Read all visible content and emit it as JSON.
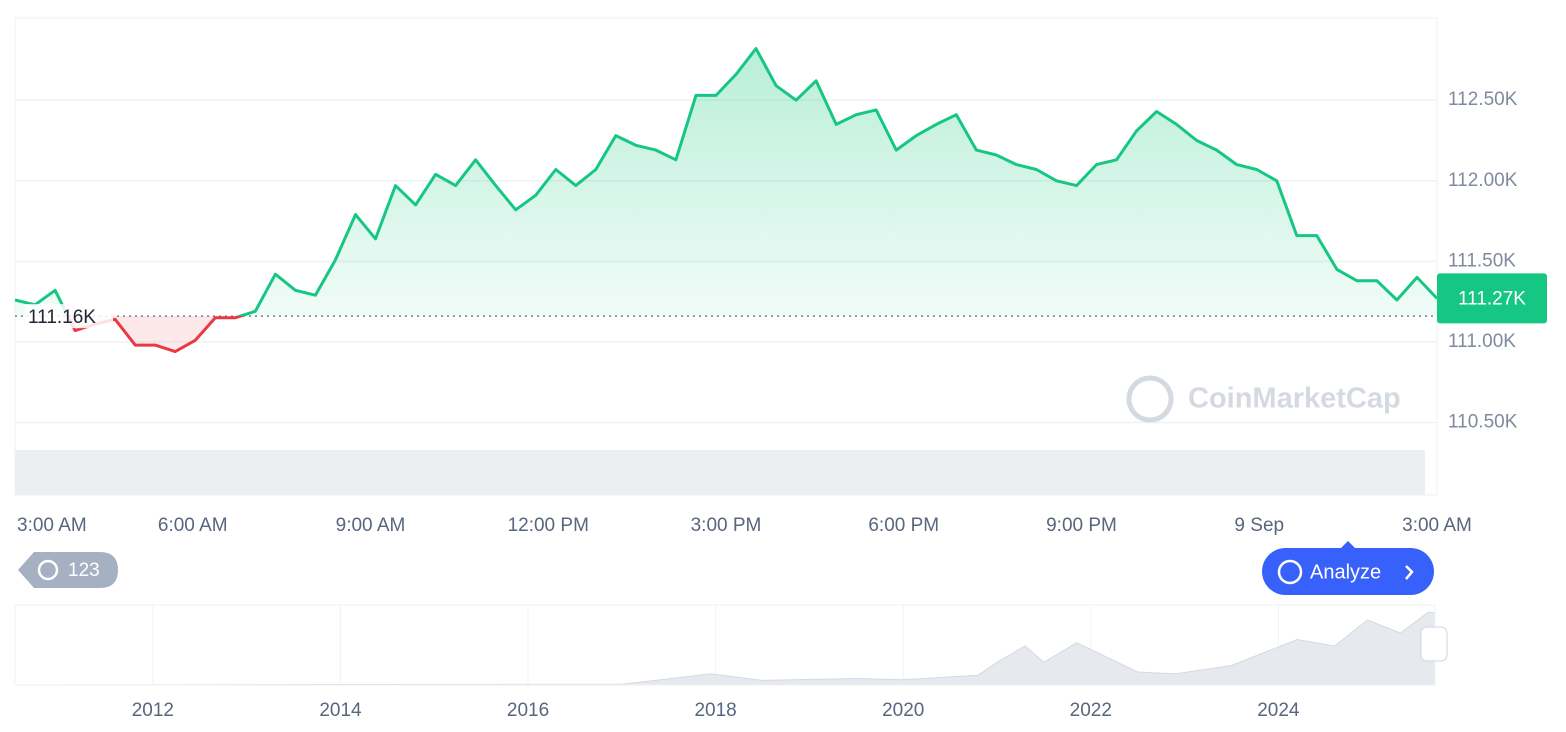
{
  "chart_data": {
    "type": "line",
    "values": [
      111260,
      111230,
      111320,
      111070,
      111110,
      111140,
      110980,
      110980,
      110940,
      111010,
      111150,
      111150,
      111190,
      111420,
      111320,
      111290,
      111510,
      111790,
      111640,
      111970,
      111850,
      112040,
      111970,
      112130,
      111970,
      111820,
      111910,
      112070,
      111970,
      112070,
      112280,
      112220,
      112190,
      112130,
      112530,
      112530,
      112660,
      112820,
      112590,
      112500,
      112620,
      112350,
      112410,
      112440,
      112190,
      112280,
      112350,
      112410,
      112190,
      112160,
      112100,
      112070,
      112000,
      111970,
      112100,
      112130,
      112310,
      112430,
      112350,
      112250,
      112190,
      112100,
      112070,
      112000,
      111660,
      111660,
      111450,
      111380,
      111380,
      111260,
      111400,
      111270
    ],
    "xticks": [
      "3:00 AM",
      "6:00 AM",
      "9:00 AM",
      "12:00 PM",
      "3:00 PM",
      "6:00 PM",
      "9:00 PM",
      "9 Sep",
      "3:00 AM"
    ],
    "ylim": [
      110050,
      113010
    ],
    "yticks": [
      {
        "value": 110500,
        "label": "110.50K"
      },
      {
        "value": 111000,
        "label": "111.00K"
      },
      {
        "value": 111500,
        "label": "111.50K"
      },
      {
        "value": 112000,
        "label": "112.00K"
      },
      {
        "value": 112500,
        "label": "112.50K"
      }
    ],
    "grid": true,
    "up_color": "#16c784",
    "down_color": "#ea3943",
    "baseline": {
      "value": 111160,
      "label": "111.16K"
    },
    "current": {
      "value": 111270,
      "label": "111.27K"
    },
    "watermark": "CoinMarketCap",
    "history_button": "123",
    "analyze_button": "Analyze",
    "overview": {
      "x": [
        2010.6,
        2013.9,
        2017.0,
        2017.95,
        2018.5,
        2019.5,
        2020.0,
        2020.8,
        2021.0,
        2021.3,
        2021.5,
        2021.85,
        2022.5,
        2022.9,
        2023.5,
        2024.2,
        2024.6,
        2024.95,
        2025.3,
        2025.6,
        2025.67
      ],
      "values": [
        0,
        800,
        1000,
        17000,
        7000,
        10000,
        8000,
        15000,
        35000,
        60000,
        35000,
        65000,
        20000,
        17000,
        30000,
        70000,
        60000,
        100000,
        80000,
        112000,
        111000
      ],
      "xlim": [
        2010.53,
        2025.67
      ],
      "ylim": [
        0,
        123000
      ],
      "xticks": [
        2012,
        2014,
        2016,
        2018,
        2020,
        2022,
        2024
      ]
    }
  }
}
